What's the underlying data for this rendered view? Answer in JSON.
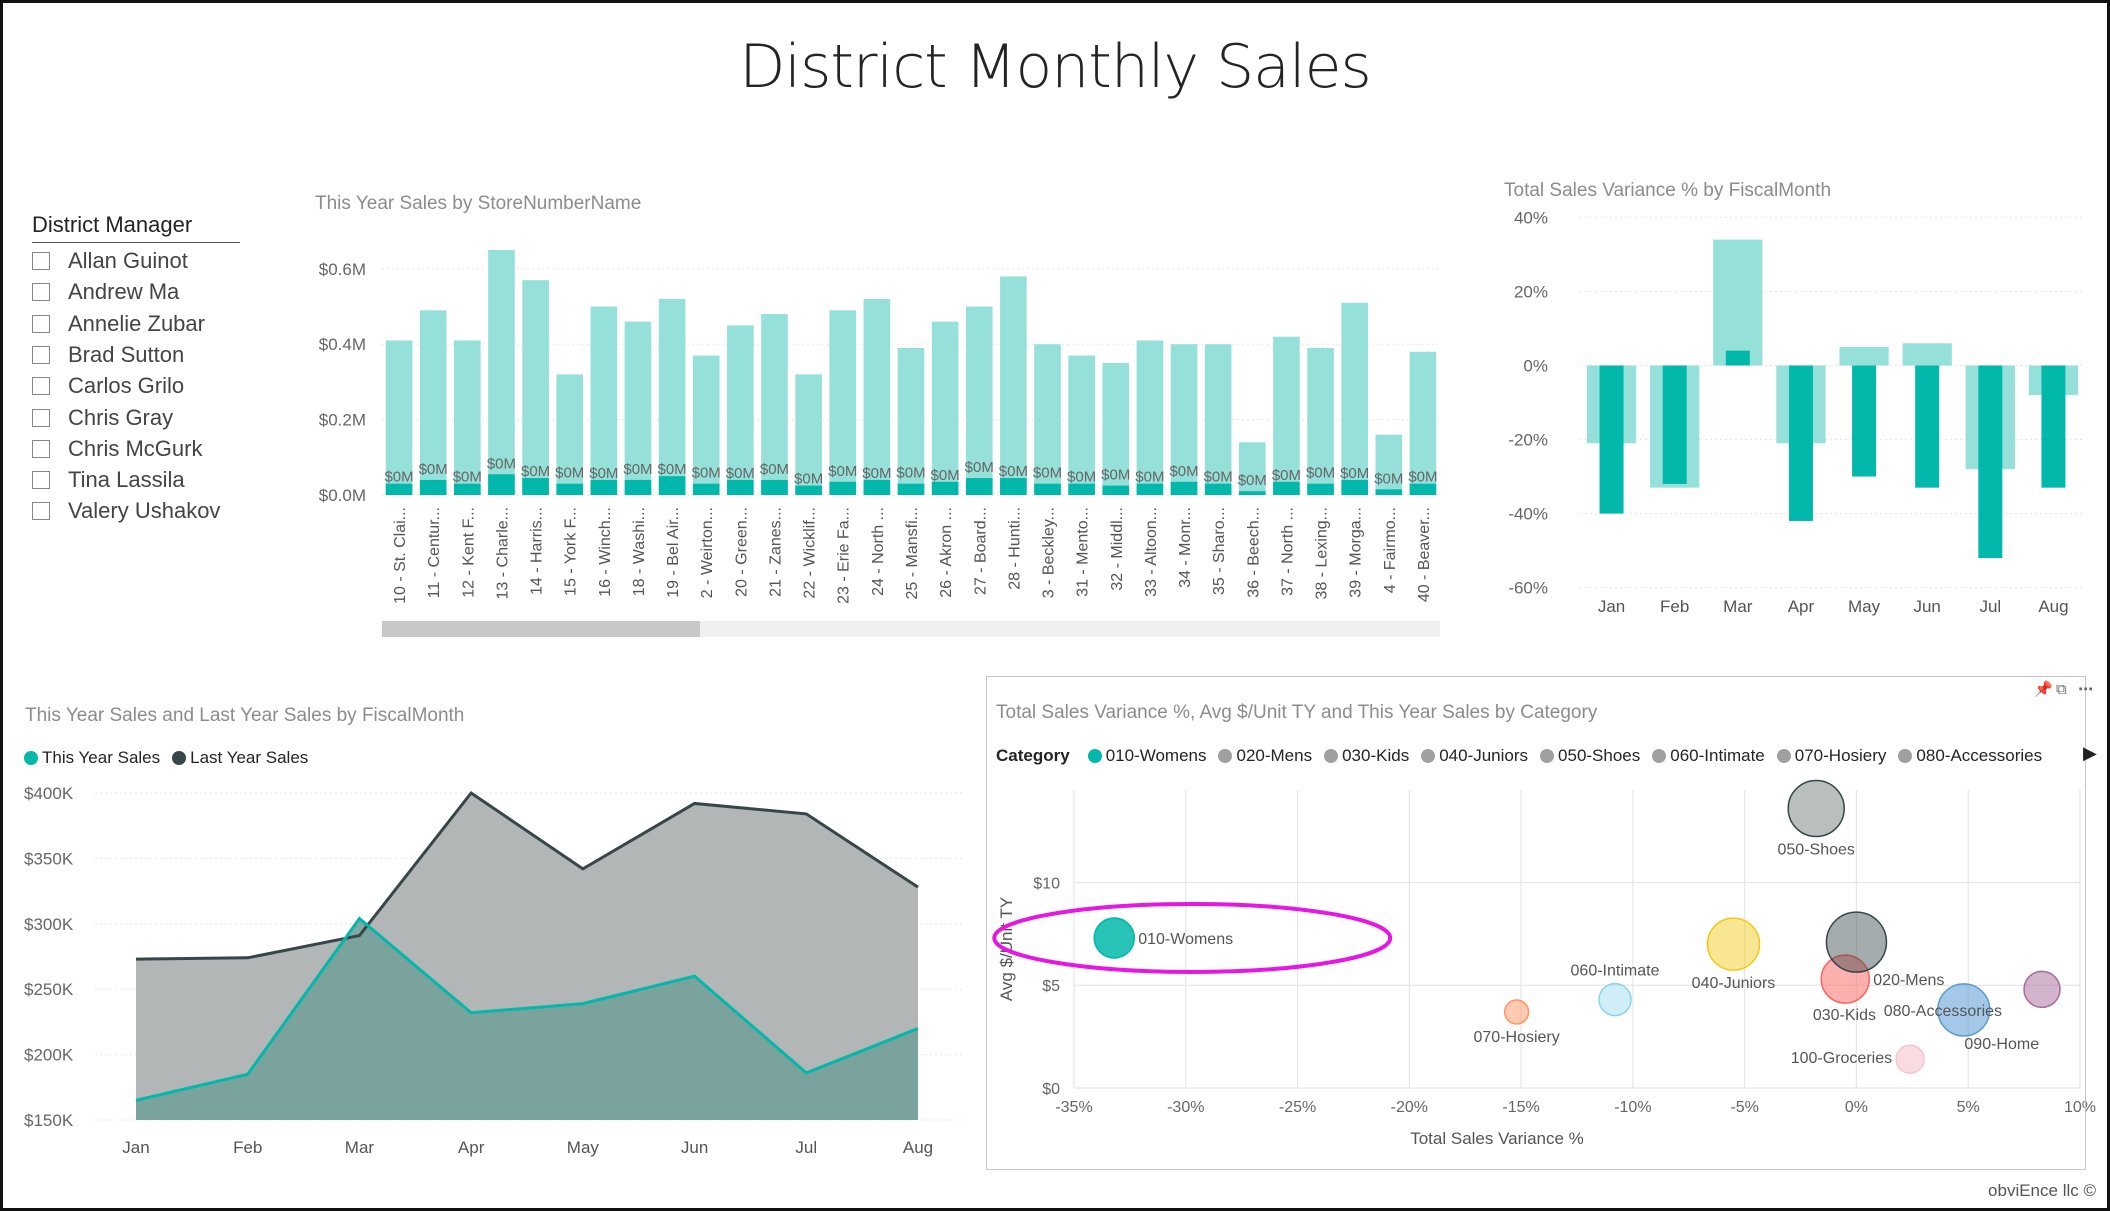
{
  "page": {
    "title": "District Monthly Sales",
    "footer": "obviEnce llc ©"
  },
  "slicer": {
    "title": "District Manager",
    "items": [
      "Allan Guinot",
      "Andrew Ma",
      "Annelie Zubar",
      "Brad Sutton",
      "Carlos Grilo",
      "Chris Gray",
      "Chris McGurk",
      "Tina Lassila",
      "Valery Ushakov"
    ]
  },
  "colors": {
    "teal": "#01b8aa",
    "teal_light": "#95e1da",
    "dark": "#374649",
    "gray_area": "#aeb2b3",
    "teal_area": "#73a19b",
    "grid": "#e6e6e6",
    "axis_text": "#666666",
    "highlight": "#e716e3"
  },
  "header_icons": [
    "pin-icon",
    "focus-mode-icon",
    "more-options-icon"
  ],
  "chart_data": [
    {
      "id": "store_bar",
      "type": "bar",
      "title": "This Year Sales by StoreNumberName",
      "categories": [
        "10 - St. Clai...",
        "11 - Centur...",
        "12 - Kent F...",
        "13 - Charle...",
        "14 - Harris...",
        "15 - York F...",
        "16 - Winch...",
        "18 - Washi...",
        "19 - Bel Air...",
        "2 - Weirton...",
        "20 - Green...",
        "21 - Zanes...",
        "22 - Wicklif...",
        "23 - Erie Fa...",
        "24 - North ...",
        "25 - Mansfi...",
        "26 - Akron ...",
        "27 - Board...",
        "28 - Hunti...",
        "3 - Beckley...",
        "31 - Mento...",
        "32 - Middl...",
        "33 - Altoon...",
        "34 - Monr...",
        "35 - Sharo...",
        "36 - Beech...",
        "37 - North ...",
        "38 - Lexing...",
        "39 - Morga...",
        "4 - Fairmo...",
        "40 - Beaver..."
      ],
      "series": [
        {
          "values": [
            0.41,
            0.49,
            0.41,
            0.65,
            0.57,
            0.32,
            0.5,
            0.46,
            0.52,
            0.37,
            0.45,
            0.48,
            0.32,
            0.49,
            0.52,
            0.39,
            0.46,
            0.5,
            0.58,
            0.4,
            0.37,
            0.35,
            0.41,
            0.4,
            0.4,
            0.14,
            0.42,
            0.39,
            0.51,
            0.16,
            0.38
          ]
        },
        {
          "values": [
            0.03,
            0.04,
            0.03,
            0.055,
            0.045,
            0.03,
            0.04,
            0.04,
            0.05,
            0.03,
            0.04,
            0.04,
            0.025,
            0.035,
            0.04,
            0.03,
            0.035,
            0.045,
            0.045,
            0.03,
            0.03,
            0.025,
            0.03,
            0.035,
            0.03,
            0.01,
            0.035,
            0.03,
            0.04,
            0.015,
            0.03
          ]
        }
      ],
      "data_labels": "$0M",
      "ylim": [
        0,
        0.65
      ],
      "yticks": [
        {
          "v": 0,
          "label": "$0.0M"
        },
        {
          "v": 0.2,
          "label": "$0.2M"
        },
        {
          "v": 0.4,
          "label": "$0.4M"
        },
        {
          "v": 0.6,
          "label": "$0.6M"
        }
      ]
    },
    {
      "id": "variance_bar",
      "type": "bar",
      "title": "Total Sales Variance % by FiscalMonth",
      "categories": [
        "Jan",
        "Feb",
        "Mar",
        "Apr",
        "May",
        "Jun",
        "Jul",
        "Aug"
      ],
      "series": [
        {
          "values": [
            -21,
            -33,
            34,
            -21,
            5,
            6,
            -28,
            -8
          ]
        },
        {
          "values": [
            -40,
            -32,
            4,
            -42,
            -30,
            -33,
            -52,
            -33
          ]
        }
      ],
      "ylim": [
        -62,
        42
      ],
      "yticks": [
        {
          "v": 40,
          "label": "40%"
        },
        {
          "v": 20,
          "label": "20%"
        },
        {
          "v": 0,
          "label": "0%"
        },
        {
          "v": -20,
          "label": "-20%"
        },
        {
          "v": -40,
          "label": "-40%"
        },
        {
          "v": -60,
          "label": "-60%"
        }
      ]
    },
    {
      "id": "sales_area",
      "type": "area",
      "title": "This Year Sales and Last Year Sales by FiscalMonth",
      "categories": [
        "Jan",
        "Feb",
        "Mar",
        "Apr",
        "May",
        "Jun",
        "Jul",
        "Aug"
      ],
      "series": [
        {
          "name": "This Year Sales",
          "values": [
            165,
            185,
            304,
            232,
            239,
            260,
            186,
            220
          ]
        },
        {
          "name": "Last Year Sales",
          "values": [
            273,
            274,
            291,
            400,
            342,
            392,
            384,
            328
          ]
        }
      ],
      "ylim": [
        150,
        400
      ],
      "yticks": [
        {
          "v": 400,
          "label": "$400K"
        },
        {
          "v": 350,
          "label": "$350K"
        },
        {
          "v": 300,
          "label": "$300K"
        },
        {
          "v": 250,
          "label": "$250K"
        },
        {
          "v": 200,
          "label": "$200K"
        },
        {
          "v": 150,
          "label": "$150K"
        }
      ]
    },
    {
      "id": "category_scatter",
      "type": "scatter",
      "title": "Total Sales Variance %, Avg $/Unit TY and This Year Sales by Category",
      "legend_title": "Category",
      "legend": [
        "010-Womens",
        "020-Mens",
        "030-Kids",
        "040-Juniors",
        "050-Shoes",
        "060-Intimate",
        "070-Hosiery",
        "080-Accessories"
      ],
      "xlabel": "Total Sales Variance %",
      "ylabel": "Avg $/Unit TY",
      "xlim": [
        -35,
        10
      ],
      "ylim": [
        0,
        14.5
      ],
      "xticks": [
        {
          "v": -35,
          "label": "-35%"
        },
        {
          "v": -30,
          "label": "-30%"
        },
        {
          "v": -25,
          "label": "-25%"
        },
        {
          "v": -20,
          "label": "-20%"
        },
        {
          "v": -15,
          "label": "-15%"
        },
        {
          "v": -10,
          "label": "-10%"
        },
        {
          "v": -5,
          "label": "-5%"
        },
        {
          "v": 0,
          "label": "0%"
        },
        {
          "v": 5,
          "label": "5%"
        },
        {
          "v": 10,
          "label": "10%"
        }
      ],
      "yticks": [
        {
          "v": 0,
          "label": "$0"
        },
        {
          "v": 5,
          "label": "$5"
        },
        {
          "v": 10,
          "label": "$10"
        }
      ],
      "points": [
        {
          "label": "010-Womens",
          "x": -33.2,
          "y": 7.3,
          "r": 20,
          "color": "#01b8aa",
          "opacity": 0.85,
          "label_pos": "right"
        },
        {
          "label": "020-Mens",
          "x": -0.5,
          "y": 5.3,
          "r": 24,
          "color": "#fd625e",
          "opacity": 0.5,
          "label_pos": "right"
        },
        {
          "label": "030-Kids",
          "x": 0.0,
          "y": 7.1,
          "r": 30,
          "color": "#374649",
          "opacity": 0.45,
          "label_pos": "below-left"
        },
        {
          "label": "040-Juniors",
          "x": -5.5,
          "y": 7.0,
          "r": 26,
          "color": "#f2c80f",
          "opacity": 0.45,
          "label_pos": "below"
        },
        {
          "label": "050-Shoes",
          "x": -1.8,
          "y": 13.6,
          "r": 28,
          "color": "#374649",
          "opacity": 0.35,
          "label_pos": "below"
        },
        {
          "label": "060-Intimate",
          "x": -10.8,
          "y": 4.3,
          "r": 16,
          "color": "#8ad4eb",
          "opacity": 0.4,
          "label_pos": "above"
        },
        {
          "label": "070-Hosiery",
          "x": -15.2,
          "y": 3.7,
          "r": 12,
          "color": "#fe9666",
          "opacity": 0.5,
          "label_pos": "below"
        },
        {
          "label": "080-Accessories",
          "x": 4.8,
          "y": 3.8,
          "r": 26,
          "color": "#5b9bd5",
          "opacity": 0.55,
          "label_pos": "right-up"
        },
        {
          "label": "090-Home",
          "x": 8.3,
          "y": 4.8,
          "r": 18,
          "color": "#a66999",
          "opacity": 0.5,
          "label_pos": "none"
        },
        {
          "label": "100-Groceries",
          "x": 2.4,
          "y": 1.4,
          "r": 14,
          "color": "#f5c4cf",
          "opacity": 0.6,
          "label_pos": "left"
        }
      ],
      "extra_labels": [
        {
          "text": "090-Home",
          "x": 6.5,
          "y": 1.9
        }
      ]
    }
  ]
}
